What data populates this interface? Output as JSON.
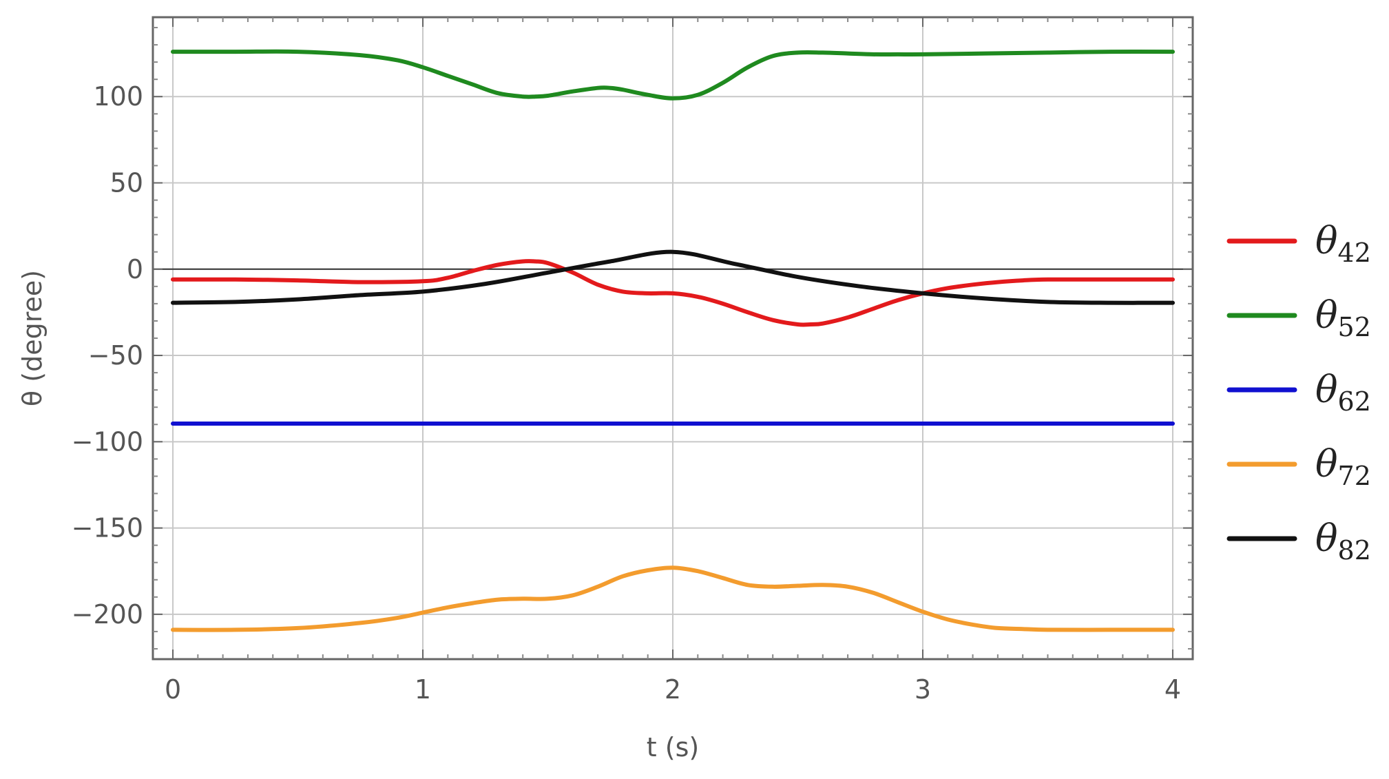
{
  "chart_data": {
    "type": "line",
    "title": "",
    "xlabel": "t (s)",
    "ylabel": "θ (degree)",
    "xlim": [
      -0.08,
      4.08
    ],
    "ylim": [
      -226,
      146
    ],
    "xticks": [
      0,
      1,
      2,
      3,
      4
    ],
    "xtick_labels": [
      "0",
      "1",
      "2",
      "3",
      "4"
    ],
    "yticks": [
      -200,
      -150,
      -100,
      -50,
      0,
      50,
      100
    ],
    "ytick_labels": [
      "−200",
      "−150",
      "−100",
      "−50",
      "0",
      "50",
      "100"
    ],
    "grid": true,
    "legend_position": "right",
    "series": [
      {
        "name": "θ42",
        "label_main": "θ",
        "label_sub": "42",
        "color": "#e31a1c",
        "x": [
          0,
          0.25,
          0.5,
          0.75,
          1.0,
          1.1,
          1.2,
          1.3,
          1.4,
          1.45,
          1.5,
          1.6,
          1.7,
          1.8,
          1.9,
          2.0,
          2.1,
          2.2,
          2.3,
          2.4,
          2.5,
          2.55,
          2.6,
          2.7,
          2.8,
          2.9,
          3.0,
          3.1,
          3.2,
          3.3,
          3.4,
          3.5,
          3.75,
          4.0
        ],
        "y": [
          -6,
          -6,
          -6.5,
          -7.5,
          -7,
          -5,
          -1,
          2.5,
          4.5,
          4.5,
          3.5,
          -2,
          -9,
          -13,
          -14,
          -14,
          -16,
          -20,
          -25,
          -29.5,
          -32,
          -32,
          -31.5,
          -28,
          -23,
          -18,
          -14,
          -11,
          -9,
          -7.5,
          -6.5,
          -6,
          -6,
          -6
        ]
      },
      {
        "name": "θ52",
        "label_main": "θ",
        "label_sub": "52",
        "color": "#1f8a1f",
        "x": [
          0,
          0.25,
          0.5,
          0.75,
          0.9,
          1.0,
          1.1,
          1.2,
          1.3,
          1.4,
          1.45,
          1.5,
          1.6,
          1.7,
          1.75,
          1.8,
          1.9,
          2.0,
          2.1,
          2.2,
          2.3,
          2.4,
          2.5,
          2.6,
          2.7,
          2.8,
          2.9,
          3.0,
          3.25,
          3.5,
          3.75,
          4.0
        ],
        "y": [
          126,
          126,
          126,
          124,
          121,
          117,
          112,
          107,
          102,
          100,
          100,
          100.5,
          103,
          105,
          105,
          104,
          101,
          99,
          101,
          108,
          117,
          123.5,
          125.5,
          125.5,
          125,
          124.5,
          124.5,
          124.5,
          125,
          125.5,
          126,
          126
        ]
      },
      {
        "name": "θ62",
        "label_main": "θ",
        "label_sub": "62",
        "color": "#1010d0",
        "x": [
          0,
          4.0
        ],
        "y": [
          -89.5,
          -89.5
        ]
      },
      {
        "name": "θ72",
        "label_main": "θ",
        "label_sub": "72",
        "color": "#f39c2e",
        "x": [
          0,
          0.25,
          0.5,
          0.75,
          0.9,
          1.0,
          1.1,
          1.2,
          1.3,
          1.4,
          1.5,
          1.6,
          1.7,
          1.8,
          1.9,
          2.0,
          2.1,
          2.2,
          2.3,
          2.4,
          2.5,
          2.6,
          2.7,
          2.8,
          2.9,
          3.0,
          3.1,
          3.2,
          3.3,
          3.4,
          3.5,
          3.75,
          4.0
        ],
        "y": [
          -209,
          -209,
          -208,
          -205,
          -202,
          -199,
          -196,
          -193.5,
          -191.5,
          -191,
          -191,
          -189,
          -184,
          -178,
          -174.5,
          -173,
          -175,
          -179,
          -183,
          -184,
          -183.5,
          -183,
          -184,
          -187.5,
          -193,
          -198.5,
          -203,
          -206,
          -208,
          -208.5,
          -209,
          -209,
          -209
        ]
      },
      {
        "name": "θ82",
        "label_main": "θ",
        "label_sub": "82",
        "color": "#111111",
        "x": [
          0,
          0.25,
          0.5,
          0.75,
          1.0,
          1.25,
          1.5,
          1.75,
          2.0,
          2.25,
          2.5,
          2.75,
          3.0,
          3.25,
          3.5,
          3.75,
          4.0
        ],
        "y": [
          -19.5,
          -19,
          -17.5,
          -15,
          -13,
          -8.5,
          -2,
          4.5,
          10,
          3,
          -4.5,
          -10,
          -14,
          -17,
          -19,
          -19.5,
          -19.5
        ]
      }
    ]
  }
}
